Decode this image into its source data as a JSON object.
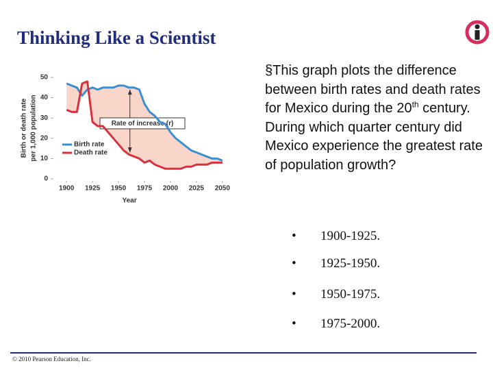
{
  "header": {
    "title": "Thinking Like a Scientist"
  },
  "chart_data": {
    "type": "line",
    "x": [
      1900,
      1905,
      1910,
      1915,
      1920,
      1925,
      1930,
      1935,
      1940,
      1945,
      1950,
      1955,
      1960,
      1965,
      1970,
      1975,
      1980,
      1985,
      1990,
      1995,
      2000,
      2005,
      2010,
      2015,
      2020,
      2025,
      2030,
      2035,
      2040,
      2045,
      2050
    ],
    "series": [
      {
        "name": "Birth rate",
        "color": "#3b8fd0",
        "values": [
          47,
          46,
          45,
          41,
          44,
          45,
          44,
          45,
          45,
          45,
          46,
          46,
          45,
          45,
          44,
          37,
          33,
          31,
          28,
          27,
          23,
          20,
          18,
          16,
          14,
          13,
          12,
          11,
          10,
          10,
          9
        ]
      },
      {
        "name": "Death rate",
        "color": "#d8313b",
        "values": [
          34,
          33,
          33,
          47,
          48,
          28,
          26,
          26,
          23,
          20,
          17,
          14,
          12,
          11,
          10,
          8,
          9,
          7,
          6,
          5,
          5,
          5,
          5,
          6,
          6,
          7,
          7,
          7,
          8,
          8,
          8
        ]
      }
    ],
    "xlim": [
      1890,
      2060
    ],
    "ylim": [
      0,
      50
    ],
    "xticks": [
      1900,
      1925,
      1950,
      1975,
      2000,
      2025,
      2050
    ],
    "yticks": [
      0,
      10,
      20,
      30,
      40,
      50
    ],
    "xlabel": "Year",
    "ylabel": [
      "Birth or death rate",
      "per 1,000 population"
    ],
    "annotation": "Rate of increase (r)",
    "fill_color": "#f9d6c9"
  },
  "question": {
    "before": "This graph plots the difference between birth rates and death rates for Mexico during the 20",
    "sup": "th",
    "after": " century. During which quarter century did Mexico experience the greatest rate of population growth?"
  },
  "options": [
    "1900-1925.",
    "1925-1950.",
    "1950-1975.",
    "1975-2000."
  ],
  "footer": "© 2010 Pearson Education, Inc."
}
